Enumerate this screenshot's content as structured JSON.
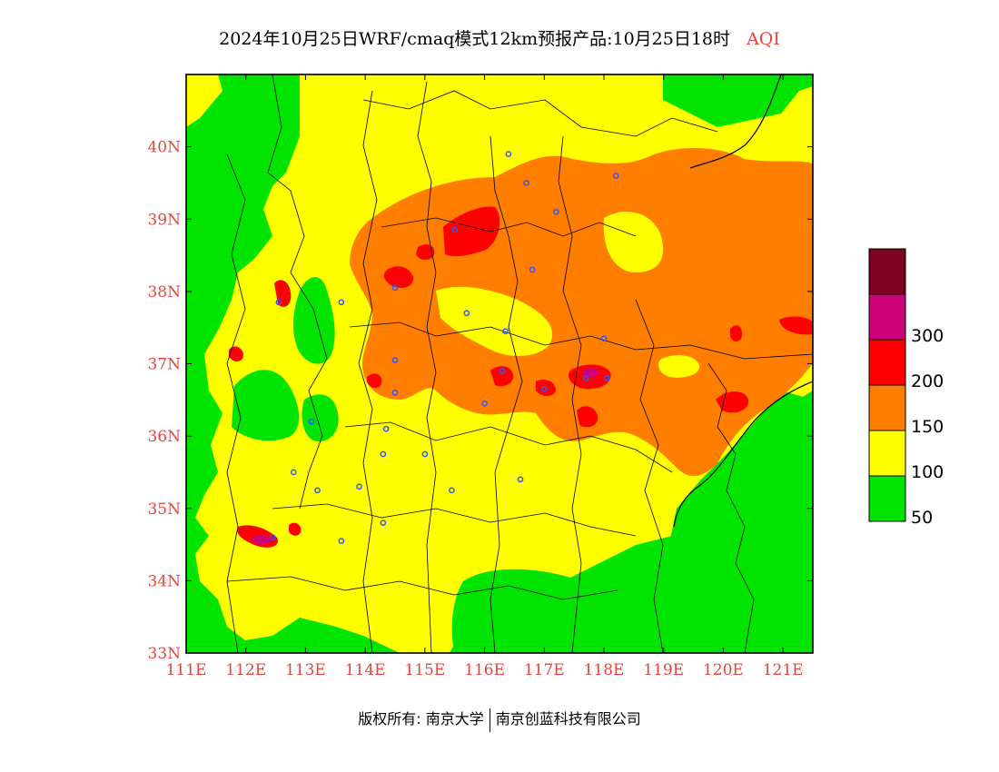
{
  "title": {
    "main": "2024年10月25日WRF/cmaq模式12km预报产品:10月25日18时",
    "variable": "AQI"
  },
  "colors": {
    "level_1": "#00e400",
    "level_2": "#ffff00",
    "level_3": "#ff7e00",
    "level_4": "#ff0000",
    "level_5": "#cc0077",
    "level_6": "#7e0023",
    "boundary": "#000000",
    "city_marker": "#3355ff",
    "tick_label": "#e8443a"
  },
  "map": {
    "lon_range": [
      111,
      121.5
    ],
    "lat_range": [
      33,
      41
    ],
    "lon_ticks": [
      {
        "value": 111,
        "label": "111E"
      },
      {
        "value": 112,
        "label": "112E"
      },
      {
        "value": 113,
        "label": "113E"
      },
      {
        "value": 114,
        "label": "114E"
      },
      {
        "value": 115,
        "label": "115E"
      },
      {
        "value": 116,
        "label": "116E"
      },
      {
        "value": 117,
        "label": "117E"
      },
      {
        "value": 118,
        "label": "118E"
      },
      {
        "value": 119,
        "label": "119E"
      },
      {
        "value": 120,
        "label": "120E"
      },
      {
        "value": 121,
        "label": "121E"
      }
    ],
    "lat_ticks": [
      {
        "value": 33,
        "label": "33N"
      },
      {
        "value": 34,
        "label": "34N"
      },
      {
        "value": 35,
        "label": "35N"
      },
      {
        "value": 36,
        "label": "36N"
      },
      {
        "value": 37,
        "label": "37N"
      },
      {
        "value": 38,
        "label": "38N"
      },
      {
        "value": 39,
        "label": "39N"
      },
      {
        "value": 40,
        "label": "40N"
      }
    ],
    "cities": [
      {
        "lon": 116.4,
        "lat": 39.9
      },
      {
        "lon": 117.2,
        "lat": 39.1
      },
      {
        "lon": 116.7,
        "lat": 39.5
      },
      {
        "lon": 118.2,
        "lat": 39.6
      },
      {
        "lon": 115.5,
        "lat": 38.85
      },
      {
        "lon": 116.8,
        "lat": 38.3
      },
      {
        "lon": 114.5,
        "lat": 38.05
      },
      {
        "lon": 115.7,
        "lat": 37.7
      },
      {
        "lon": 112.55,
        "lat": 37.85
      },
      {
        "lon": 113.6,
        "lat": 37.85
      },
      {
        "lon": 116.35,
        "lat": 37.45
      },
      {
        "lon": 118.0,
        "lat": 37.35
      },
      {
        "lon": 114.5,
        "lat": 37.05
      },
      {
        "lon": 116.3,
        "lat": 36.9
      },
      {
        "lon": 117.0,
        "lat": 36.65
      },
      {
        "lon": 117.7,
        "lat": 36.8
      },
      {
        "lon": 118.05,
        "lat": 36.8
      },
      {
        "lon": 114.5,
        "lat": 36.6
      },
      {
        "lon": 116.0,
        "lat": 36.45
      },
      {
        "lon": 113.1,
        "lat": 36.2
      },
      {
        "lon": 114.35,
        "lat": 36.1
      },
      {
        "lon": 114.3,
        "lat": 35.75
      },
      {
        "lon": 115.0,
        "lat": 35.75
      },
      {
        "lon": 112.8,
        "lat": 35.5
      },
      {
        "lon": 116.6,
        "lat": 35.4
      },
      {
        "lon": 113.9,
        "lat": 35.3
      },
      {
        "lon": 115.45,
        "lat": 35.25
      },
      {
        "lon": 113.2,
        "lat": 35.25
      },
      {
        "lon": 114.3,
        "lat": 34.8
      },
      {
        "lon": 113.6,
        "lat": 34.55
      },
      {
        "lon": 112.45,
        "lat": 34.6
      }
    ]
  },
  "legend": {
    "bins": [
      {
        "color": "#7e0023",
        "label": ""
      },
      {
        "color": "#cc0077",
        "label": "300"
      },
      {
        "color": "#ff0000",
        "label": "200"
      },
      {
        "color": "#ff7e00",
        "label": "150"
      },
      {
        "color": "#ffff00",
        "label": "100"
      },
      {
        "color": "#00e400",
        "label": "50"
      }
    ]
  },
  "footer": {
    "left": "版权所有: 南京大学",
    "right": "南京创蓝科技有限公司"
  }
}
